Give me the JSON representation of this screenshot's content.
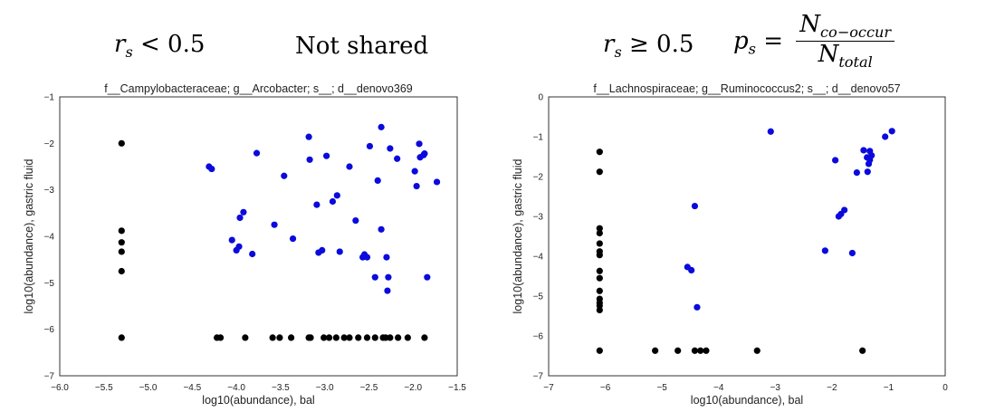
{
  "headers": {
    "left_math": "r",
    "left_sub": "s",
    "left_rel": "< 0.5",
    "left_text": "Not shared",
    "right_math": "r",
    "right_sub": "s",
    "right_rel": "≥ 0.5",
    "formula_lhs": "p",
    "formula_lhs_sub": "s",
    "formula_eq": "=",
    "formula_num": "N",
    "formula_num_sub": "co−occur",
    "formula_den": "N",
    "formula_den_sub": "total"
  },
  "colors": {
    "shared": "#0a0adc",
    "unshared": "#000000"
  },
  "chart_data": [
    {
      "type": "scatter",
      "title": "f__Campylobacteraceae; g__Arcobacter; s__; d__denovo369",
      "xlabel": "log10(abundance), bal",
      "ylabel": "log10(abundance), gastric fluid",
      "xlim": [
        -6.0,
        -1.5
      ],
      "ylim": [
        -7,
        -1
      ],
      "xticks": [
        -6.0,
        -5.5,
        -5.0,
        -4.5,
        -4.0,
        -3.5,
        -3.0,
        -2.5,
        -2.0,
        -1.5
      ],
      "xtick_labels": [
        "−6.0",
        "−5.5",
        "−5.0",
        "−4.5",
        "−4.0",
        "−3.5",
        "−3.0",
        "−2.5",
        "−2.0",
        "−1.5"
      ],
      "yticks": [
        -7,
        -6,
        -5,
        -4,
        -3,
        -2,
        -1
      ],
      "ytick_labels": [
        "−7",
        "−6",
        "−5",
        "−4",
        "−3",
        "−2",
        "−1"
      ],
      "grid": false,
      "series": [
        {
          "color": "#0a0adc",
          "points": [
            [
              -4.31,
              -2.5
            ],
            [
              -4.28,
              -2.55
            ],
            [
              -4.05,
              -4.08
            ],
            [
              -4.0,
              -4.3
            ],
            [
              -3.96,
              -3.6
            ],
            [
              -3.97,
              -4.22
            ],
            [
              -3.92,
              -3.48
            ],
            [
              -3.82,
              -4.38
            ],
            [
              -3.77,
              -2.21
            ],
            [
              -3.57,
              -3.75
            ],
            [
              -3.46,
              -2.7
            ],
            [
              -3.36,
              -4.05
            ],
            [
              -3.18,
              -1.86
            ],
            [
              -3.17,
              -2.35
            ],
            [
              -3.09,
              -3.32
            ],
            [
              -3.07,
              -4.35
            ],
            [
              -3.03,
              -4.3
            ],
            [
              -2.98,
              -2.27
            ],
            [
              -2.91,
              -3.25
            ],
            [
              -2.86,
              -3.12
            ],
            [
              -2.83,
              -4.33
            ],
            [
              -2.72,
              -2.5
            ],
            [
              -2.65,
              -3.66
            ],
            [
              -2.57,
              -4.45
            ],
            [
              -2.55,
              -4.39
            ],
            [
              -2.52,
              -4.45
            ],
            [
              -2.49,
              -2.06
            ],
            [
              -2.43,
              -4.88
            ],
            [
              -2.4,
              -2.8
            ],
            [
              -2.36,
              -1.65
            ],
            [
              -2.36,
              -3.85
            ],
            [
              -2.3,
              -4.45
            ],
            [
              -2.28,
              -4.88
            ],
            [
              -2.29,
              -5.17
            ],
            [
              -2.26,
              -2.11
            ],
            [
              -2.18,
              -2.33
            ],
            [
              -1.98,
              -2.6
            ],
            [
              -1.96,
              -2.92
            ],
            [
              -1.93,
              -2.01
            ],
            [
              -1.92,
              -2.3
            ],
            [
              -1.88,
              -2.25
            ],
            [
              -1.87,
              -2.22
            ],
            [
              -1.84,
              -4.88
            ],
            [
              -1.73,
              -2.83
            ]
          ]
        },
        {
          "color": "#000000",
          "points": [
            [
              -5.3,
              -2.0
            ],
            [
              -5.3,
              -3.88
            ],
            [
              -5.3,
              -4.13
            ],
            [
              -5.3,
              -4.33
            ],
            [
              -5.3,
              -4.75
            ],
            [
              -5.3,
              -6.18
            ],
            [
              -4.22,
              -6.18
            ],
            [
              -4.18,
              -6.18
            ],
            [
              -3.9,
              -6.18
            ],
            [
              -3.59,
              -6.18
            ],
            [
              -3.51,
              -6.18
            ],
            [
              -3.38,
              -6.18
            ],
            [
              -3.18,
              -6.18
            ],
            [
              -3.16,
              -6.18
            ],
            [
              -3.01,
              -6.18
            ],
            [
              -2.95,
              -6.18
            ],
            [
              -2.87,
              -6.18
            ],
            [
              -2.78,
              -6.18
            ],
            [
              -2.72,
              -6.18
            ],
            [
              -2.62,
              -6.18
            ],
            [
              -2.52,
              -6.18
            ],
            [
              -2.43,
              -6.18
            ],
            [
              -2.34,
              -6.18
            ],
            [
              -2.31,
              -6.18
            ],
            [
              -2.26,
              -6.18
            ],
            [
              -2.17,
              -6.18
            ],
            [
              -2.06,
              -6.18
            ],
            [
              -1.87,
              -6.18
            ]
          ]
        }
      ]
    },
    {
      "type": "scatter",
      "title": "f__Lachnospiraceae; g__Ruminococcus2; s__; d__denovo57",
      "xlabel": "log10(abundance), bal",
      "ylabel": "log10(abundance), gastric fluid",
      "xlim": [
        -7,
        0
      ],
      "ylim": [
        -7,
        0
      ],
      "xticks": [
        -7,
        -6,
        -5,
        -4,
        -3,
        -2,
        -1,
        0
      ],
      "xtick_labels": [
        "−7",
        "−6",
        "−5",
        "−4",
        "−3",
        "−2",
        "−1",
        "0"
      ],
      "yticks": [
        -7,
        -6,
        -5,
        -4,
        -3,
        -2,
        -1,
        0
      ],
      "ytick_labels": [
        "−7",
        "−6",
        "−5",
        "−4",
        "−3",
        "−2",
        "−1",
        "0"
      ],
      "grid": false,
      "series": [
        {
          "color": "#0a0adc",
          "points": [
            [
              -4.55,
              -4.27
            ],
            [
              -4.48,
              -4.35
            ],
            [
              -4.42,
              -2.74
            ],
            [
              -4.38,
              -5.28
            ],
            [
              -3.08,
              -0.87
            ],
            [
              -2.12,
              -3.86
            ],
            [
              -1.94,
              -1.59
            ],
            [
              -1.88,
              -3.0
            ],
            [
              -1.84,
              -2.94
            ],
            [
              -1.78,
              -2.84
            ],
            [
              -1.64,
              -3.92
            ],
            [
              -1.56,
              -1.9
            ],
            [
              -1.44,
              -1.34
            ],
            [
              -1.38,
              -1.52
            ],
            [
              -1.37,
              -1.88
            ],
            [
              -1.35,
              -1.68
            ],
            [
              -1.33,
              -1.58
            ],
            [
              -1.33,
              -1.36
            ],
            [
              -1.3,
              -1.47
            ],
            [
              -1.06,
              -1.0
            ],
            [
              -0.94,
              -0.86
            ]
          ]
        },
        {
          "color": "#000000",
          "points": [
            [
              -6.1,
              -1.38
            ],
            [
              -6.1,
              -1.88
            ],
            [
              -6.1,
              -3.3
            ],
            [
              -6.1,
              -3.42
            ],
            [
              -6.1,
              -3.68
            ],
            [
              -6.1,
              -3.88
            ],
            [
              -6.1,
              -3.97
            ],
            [
              -6.1,
              -4.37
            ],
            [
              -6.1,
              -4.55
            ],
            [
              -6.1,
              -4.87
            ],
            [
              -6.1,
              -5.07
            ],
            [
              -6.1,
              -5.17
            ],
            [
              -6.1,
              -5.24
            ],
            [
              -6.1,
              -5.35
            ],
            [
              -6.1,
              -6.37
            ],
            [
              -5.12,
              -6.37
            ],
            [
              -4.72,
              -6.37
            ],
            [
              -4.42,
              -6.37
            ],
            [
              -4.32,
              -6.37
            ],
            [
              -4.22,
              -6.37
            ],
            [
              -3.32,
              -6.37
            ],
            [
              -1.46,
              -6.37
            ]
          ]
        }
      ]
    }
  ]
}
